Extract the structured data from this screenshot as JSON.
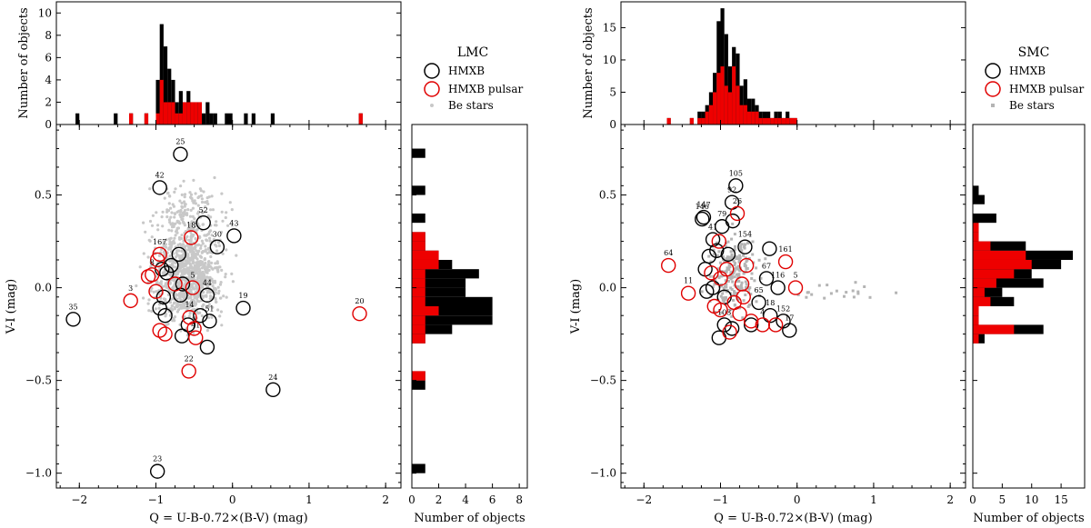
{
  "chart_data": [
    {
      "type": "scatter",
      "galaxy": "LMC",
      "legend": {
        "title": "LMC",
        "hmxb": "HMXB",
        "pulsar": "HMXB pulsar",
        "be": "Be stars",
        "placement": "top-right panel"
      },
      "xlabel": "Q = U-B-0.72×(B-V) (mag)",
      "ylabel": "V-I (mag)",
      "top_ylabel": "Number of objects",
      "right_xlabel": "Number of objects",
      "xlim": [
        -2.3,
        2.2
      ],
      "ylim": [
        -1.08,
        0.88
      ],
      "xticks": [
        "−2",
        "−1",
        "0",
        "1",
        "2"
      ],
      "xtick_values": [
        -2,
        -1,
        0,
        1,
        2
      ],
      "yticks": [
        "−1.0",
        "−0.5",
        "0.0",
        "0.5"
      ],
      "ytick_values": [
        -1.0,
        -0.5,
        0.0,
        0.5
      ],
      "top_hist": {
        "ylim": [
          0,
          11
        ],
        "ytick_values": [
          0,
          2,
          4,
          6,
          8,
          10
        ],
        "yticks": [
          "0",
          "2",
          "4",
          "6",
          "8",
          "10"
        ],
        "bin_width": 0.05,
        "bins_left": [
          -2.05,
          -1.55,
          -1.35,
          -1.15,
          -1.0,
          -0.95,
          -0.9,
          -0.85,
          -0.8,
          -0.75,
          -0.7,
          -0.65,
          -0.6,
          -0.55,
          -0.5,
          -0.45,
          -0.4,
          -0.35,
          -0.3,
          -0.25,
          -0.1,
          -0.05,
          0.15,
          0.25,
          0.5,
          1.65
        ],
        "total": [
          1,
          1,
          1,
          1,
          4,
          9,
          7,
          5,
          4,
          2,
          3,
          2,
          3,
          2,
          2,
          2,
          1,
          2,
          1,
          1,
          1,
          1,
          1,
          1,
          1,
          1
        ],
        "pulsar": [
          0,
          0,
          1,
          1,
          1,
          4,
          2,
          2,
          2,
          1,
          1,
          2,
          2,
          2,
          2,
          2,
          0,
          0,
          0,
          0,
          0,
          0,
          0,
          0,
          0,
          1
        ]
      },
      "right_hist": {
        "xlim": [
          0,
          8.6
        ],
        "xtick_values": [
          0,
          2,
          4,
          6,
          8
        ],
        "xticks": [
          "0",
          "2",
          "4",
          "6",
          "8"
        ],
        "bin_width": 0.05,
        "bins_bottom": [
          -1.0,
          -0.55,
          -0.5,
          -0.3,
          -0.25,
          -0.2,
          -0.15,
          -0.1,
          -0.05,
          0.0,
          0.05,
          0.1,
          0.15,
          0.2,
          0.25,
          0.35,
          0.5,
          0.7
        ],
        "total": [
          1,
          1,
          1,
          1,
          3,
          6,
          6,
          6,
          4,
          4,
          5,
          3,
          2,
          1,
          1,
          1,
          1,
          1
        ],
        "pulsar": [
          0,
          0,
          1,
          1,
          1,
          1,
          2,
          1,
          1,
          1,
          1,
          2,
          2,
          1,
          1,
          0,
          0,
          0
        ]
      },
      "hmxb": [
        {
          "q": -0.68,
          "vi": 0.72,
          "label": "25"
        },
        {
          "q": -0.95,
          "vi": 0.54,
          "label": "42"
        },
        {
          "q": -0.38,
          "vi": 0.35,
          "label": "52"
        },
        {
          "q": 0.02,
          "vi": 0.28,
          "label": "43"
        },
        {
          "q": -0.2,
          "vi": 0.22,
          "label": "30"
        },
        {
          "q": -0.7,
          "vi": 0.18,
          "label": ""
        },
        {
          "q": -0.8,
          "vi": 0.12,
          "label": ""
        },
        {
          "q": -0.86,
          "vi": 0.08,
          "label": ""
        },
        {
          "q": -0.92,
          "vi": 0.1,
          "label": ""
        },
        {
          "q": -0.65,
          "vi": 0.02,
          "label": ""
        },
        {
          "q": -0.68,
          "vi": -0.04,
          "label": ""
        },
        {
          "q": -0.33,
          "vi": -0.04,
          "label": "44"
        },
        {
          "q": 0.14,
          "vi": -0.11,
          "label": "19"
        },
        {
          "q": -2.08,
          "vi": -0.17,
          "label": "35"
        },
        {
          "q": -0.95,
          "vi": -0.11,
          "label": ""
        },
        {
          "q": -0.88,
          "vi": -0.15,
          "label": ""
        },
        {
          "q": -0.42,
          "vi": -0.15,
          "label": ""
        },
        {
          "q": -0.3,
          "vi": -0.18,
          "label": "51"
        },
        {
          "q": -0.66,
          "vi": -0.26,
          "label": ""
        },
        {
          "q": -0.33,
          "vi": -0.32,
          "label": ""
        },
        {
          "q": 0.53,
          "vi": -0.55,
          "label": "24"
        },
        {
          "q": -0.98,
          "vi": -0.99,
          "label": "23"
        },
        {
          "q": -0.9,
          "vi": -0.05,
          "label": ""
        },
        {
          "q": -0.58,
          "vi": -0.2,
          "label": ""
        }
      ],
      "pulsar": [
        {
          "q": -0.54,
          "vi": 0.27,
          "label": "18"
        },
        {
          "q": -0.95,
          "vi": 0.18,
          "label": "167"
        },
        {
          "q": -0.98,
          "vi": 0.15,
          "label": ""
        },
        {
          "q": -1.05,
          "vi": 0.07,
          "label": "8"
        },
        {
          "q": -1.1,
          "vi": 0.06,
          "label": ""
        },
        {
          "q": -0.75,
          "vi": 0.02,
          "label": ""
        },
        {
          "q": -0.52,
          "vi": 0.0,
          "label": "5"
        },
        {
          "q": -1.33,
          "vi": -0.07,
          "label": "3"
        },
        {
          "q": 1.66,
          "vi": -0.14,
          "label": "20"
        },
        {
          "q": -0.56,
          "vi": -0.16,
          "label": "14"
        },
        {
          "q": -0.95,
          "vi": -0.23,
          "label": ""
        },
        {
          "q": -0.88,
          "vi": -0.25,
          "label": ""
        },
        {
          "q": -0.48,
          "vi": -0.27,
          "label": "41"
        },
        {
          "q": -0.57,
          "vi": -0.45,
          "label": "22"
        },
        {
          "q": -1.0,
          "vi": -0.02,
          "label": ""
        },
        {
          "q": -0.5,
          "vi": -0.22,
          "label": ""
        }
      ]
    },
    {
      "type": "scatter",
      "galaxy": "SMC",
      "legend": {
        "title": "SMC",
        "hmxb": "HMXB",
        "pulsar": "HMXB pulsar",
        "be": "Be stars",
        "placement": "top-right panel"
      },
      "xlabel": "Q = U-B-0.72×(B-V) (mag)",
      "ylabel": "V-I (mag)",
      "top_ylabel": "Number of objects",
      "right_xlabel": "Number of objects",
      "xlim": [
        -2.3,
        2.2
      ],
      "ylim": [
        -1.08,
        0.88
      ],
      "xticks": [
        "−2",
        "−1",
        "0",
        "1",
        "2"
      ],
      "xtick_values": [
        -2,
        -1,
        0,
        1,
        2
      ],
      "yticks": [
        "−1.0",
        "−0.5",
        "0.0",
        "0.5"
      ],
      "ytick_values": [
        -1.0,
        -0.5,
        0.0,
        0.5
      ],
      "top_hist": {
        "ylim": [
          0,
          19
        ],
        "ytick_values": [
          0,
          5,
          10,
          15
        ],
        "yticks": [
          "0",
          "5",
          "10",
          "15"
        ],
        "bin_width": 0.05,
        "bins_left": [
          -1.7,
          -1.4,
          -1.3,
          -1.25,
          -1.2,
          -1.15,
          -1.1,
          -1.05,
          -1.0,
          -0.95,
          -0.9,
          -0.85,
          -0.8,
          -0.75,
          -0.7,
          -0.65,
          -0.6,
          -0.55,
          -0.5,
          -0.45,
          -0.4,
          -0.35,
          -0.3,
          -0.25,
          -0.2,
          -0.15,
          -0.1,
          -0.05
        ],
        "total": [
          1,
          1,
          2,
          2,
          3,
          5,
          8,
          16,
          18,
          14,
          9,
          12,
          11,
          6,
          7,
          4,
          4,
          3,
          2,
          2,
          2,
          1,
          2,
          2,
          1,
          2,
          1,
          1
        ],
        "pulsar": [
          1,
          1,
          1,
          1,
          2,
          3,
          5,
          8,
          9,
          6,
          5,
          9,
          6,
          3,
          3,
          2,
          2,
          2,
          1,
          1,
          1,
          1,
          1,
          1,
          1,
          1,
          1,
          1
        ]
      },
      "right_hist": {
        "xlim": [
          0,
          19
        ],
        "xtick_values": [
          0,
          5,
          10,
          15
        ],
        "xticks": [
          "0",
          "5",
          "10",
          "15"
        ],
        "bin_width": 0.05,
        "bins_bottom": [
          -0.3,
          -0.25,
          -0.2,
          -0.15,
          -0.1,
          -0.05,
          0.0,
          0.05,
          0.1,
          0.15,
          0.2,
          0.25,
          0.3,
          0.35,
          0.45,
          0.5
        ],
        "total": [
          2,
          12,
          1,
          1,
          7,
          5,
          12,
          10,
          15,
          17,
          9,
          1,
          1,
          4,
          2,
          1
        ],
        "pulsar": [
          1,
          7,
          1,
          1,
          3,
          2,
          4,
          7,
          10,
          9,
          3,
          1,
          1,
          0,
          0,
          0
        ]
      },
      "hmxb": [
        {
          "q": -0.8,
          "vi": 0.55,
          "label": "105"
        },
        {
          "q": -0.85,
          "vi": 0.46,
          "label": "92"
        },
        {
          "q": -1.24,
          "vi": 0.37,
          "label": "146"
        },
        {
          "q": -1.22,
          "vi": 0.38,
          "label": "147"
        },
        {
          "q": -0.84,
          "vi": 0.36,
          "label": ""
        },
        {
          "q": -0.98,
          "vi": 0.33,
          "label": "79"
        },
        {
          "q": -1.1,
          "vi": 0.26,
          "label": "41"
        },
        {
          "q": -0.68,
          "vi": 0.22,
          "label": "154"
        },
        {
          "q": -1.05,
          "vi": 0.2,
          "label": ""
        },
        {
          "q": -0.9,
          "vi": 0.18,
          "label": ""
        },
        {
          "q": -1.15,
          "vi": 0.17,
          "label": ""
        },
        {
          "q": -0.36,
          "vi": 0.21,
          "label": ""
        },
        {
          "q": -1.2,
          "vi": 0.1,
          "label": ""
        },
        {
          "q": -0.4,
          "vi": 0.05,
          "label": "67"
        },
        {
          "q": -0.25,
          "vi": 0.0,
          "label": "116"
        },
        {
          "q": -1.1,
          "vi": 0.0,
          "label": ""
        },
        {
          "q": -0.95,
          "vi": -0.05,
          "label": ""
        },
        {
          "q": -0.5,
          "vi": -0.08,
          "label": "65"
        },
        {
          "q": -0.35,
          "vi": -0.15,
          "label": "18"
        },
        {
          "q": -0.18,
          "vi": -0.18,
          "label": "152"
        },
        {
          "q": -0.1,
          "vi": -0.23,
          "label": "17"
        },
        {
          "q": -1.02,
          "vi": -0.27,
          "label": ""
        },
        {
          "q": -0.95,
          "vi": -0.2,
          "label": "103"
        },
        {
          "q": -0.85,
          "vi": -0.22,
          "label": ""
        },
        {
          "q": -0.6,
          "vi": -0.2,
          "label": ""
        },
        {
          "q": -1.18,
          "vi": -0.02,
          "label": ""
        }
      ],
      "pulsar": [
        {
          "q": -1.68,
          "vi": 0.12,
          "label": "64"
        },
        {
          "q": -1.42,
          "vi": -0.03,
          "label": "11"
        },
        {
          "q": -0.78,
          "vi": 0.4,
          "label": "26"
        },
        {
          "q": -0.15,
          "vi": 0.14,
          "label": "161"
        },
        {
          "q": -0.02,
          "vi": 0.0,
          "label": "5"
        },
        {
          "q": -1.02,
          "vi": 0.25,
          "label": ""
        },
        {
          "q": -1.12,
          "vi": 0.08,
          "label": ""
        },
        {
          "q": -1.0,
          "vi": 0.05,
          "label": ""
        },
        {
          "q": -0.92,
          "vi": 0.1,
          "label": ""
        },
        {
          "q": -0.72,
          "vi": 0.02,
          "label": ""
        },
        {
          "q": -0.66,
          "vi": 0.12,
          "label": ""
        },
        {
          "q": -1.08,
          "vi": -0.1,
          "label": ""
        },
        {
          "q": -0.82,
          "vi": -0.08,
          "label": ""
        },
        {
          "q": -0.7,
          "vi": -0.05,
          "label": ""
        },
        {
          "q": -0.6,
          "vi": -0.18,
          "label": ""
        },
        {
          "q": -0.45,
          "vi": -0.2,
          "label": "4"
        },
        {
          "q": -0.28,
          "vi": -0.2,
          "label": ""
        },
        {
          "q": -0.88,
          "vi": -0.24,
          "label": ""
        },
        {
          "q": -1.0,
          "vi": -0.12,
          "label": ""
        },
        {
          "q": -0.75,
          "vi": -0.14,
          "label": ""
        }
      ]
    }
  ]
}
